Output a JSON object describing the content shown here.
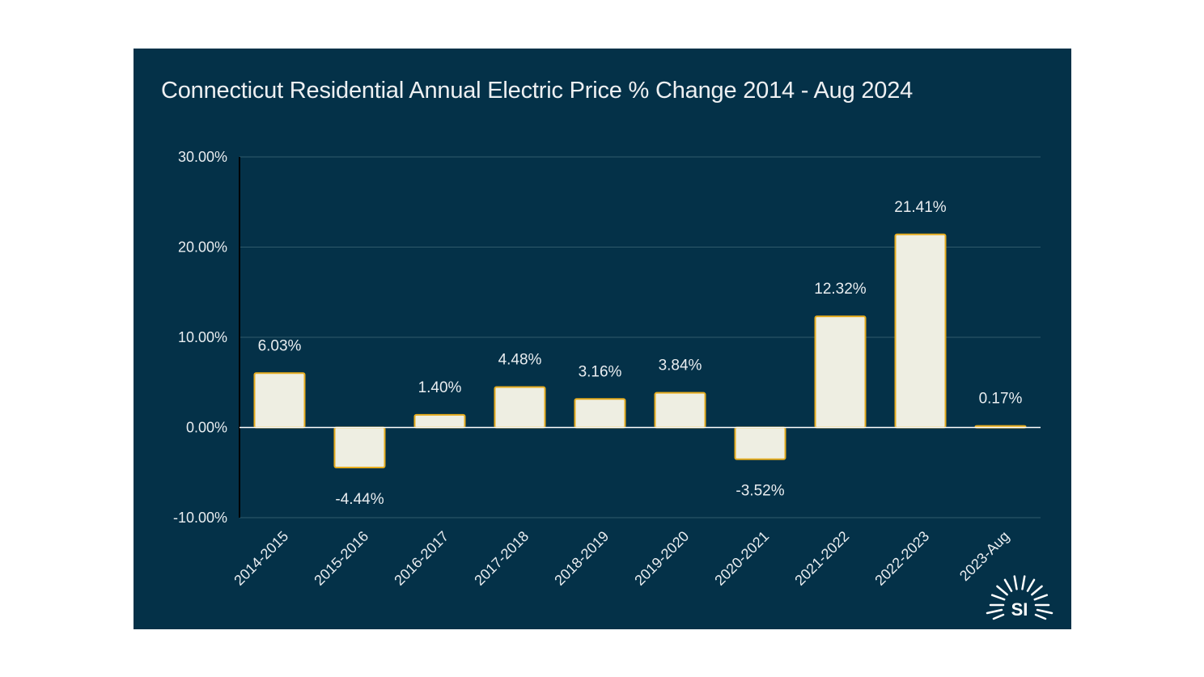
{
  "chart_data": {
    "type": "bar",
    "title": "Connecticut Residential Annual Electric Price % Change 2014 - Aug 2024",
    "xlabel": "",
    "ylabel": "",
    "ylim": [
      -10,
      30
    ],
    "yticks": [
      30,
      20,
      10,
      0,
      -10
    ],
    "ytick_labels": [
      "30.00%",
      "20.00%",
      "10.00%",
      "0.00%",
      "-10.00%"
    ],
    "categories": [
      "2014-2015",
      "2015-2016",
      "2016-2017",
      "2017-2018",
      "2018-2019",
      "2019-2020",
      "2020-2021",
      "2021-2022",
      "2022-2023",
      "2023-Aug"
    ],
    "values": [
      6.03,
      -4.44,
      1.4,
      4.48,
      3.16,
      3.84,
      -3.52,
      12.32,
      21.41,
      0.17
    ],
    "data_labels": [
      "6.03%",
      "-4.44%",
      "1.40%",
      "4.48%",
      "3.16%",
      "3.84%",
      "-3.52%",
      "12.32%",
      "21.41%",
      "0.17%"
    ],
    "grid": true,
    "legend": "none"
  },
  "colors": {
    "background": "#043148",
    "bar_fill": "#eeeee2",
    "bar_stroke": "#e6ac1e",
    "gridline": "#2f5a6c",
    "zero_line": "#ffffff",
    "text": "#e9edf0"
  },
  "logo": {
    "text": "SI",
    "icon": "sun-rays-icon"
  }
}
